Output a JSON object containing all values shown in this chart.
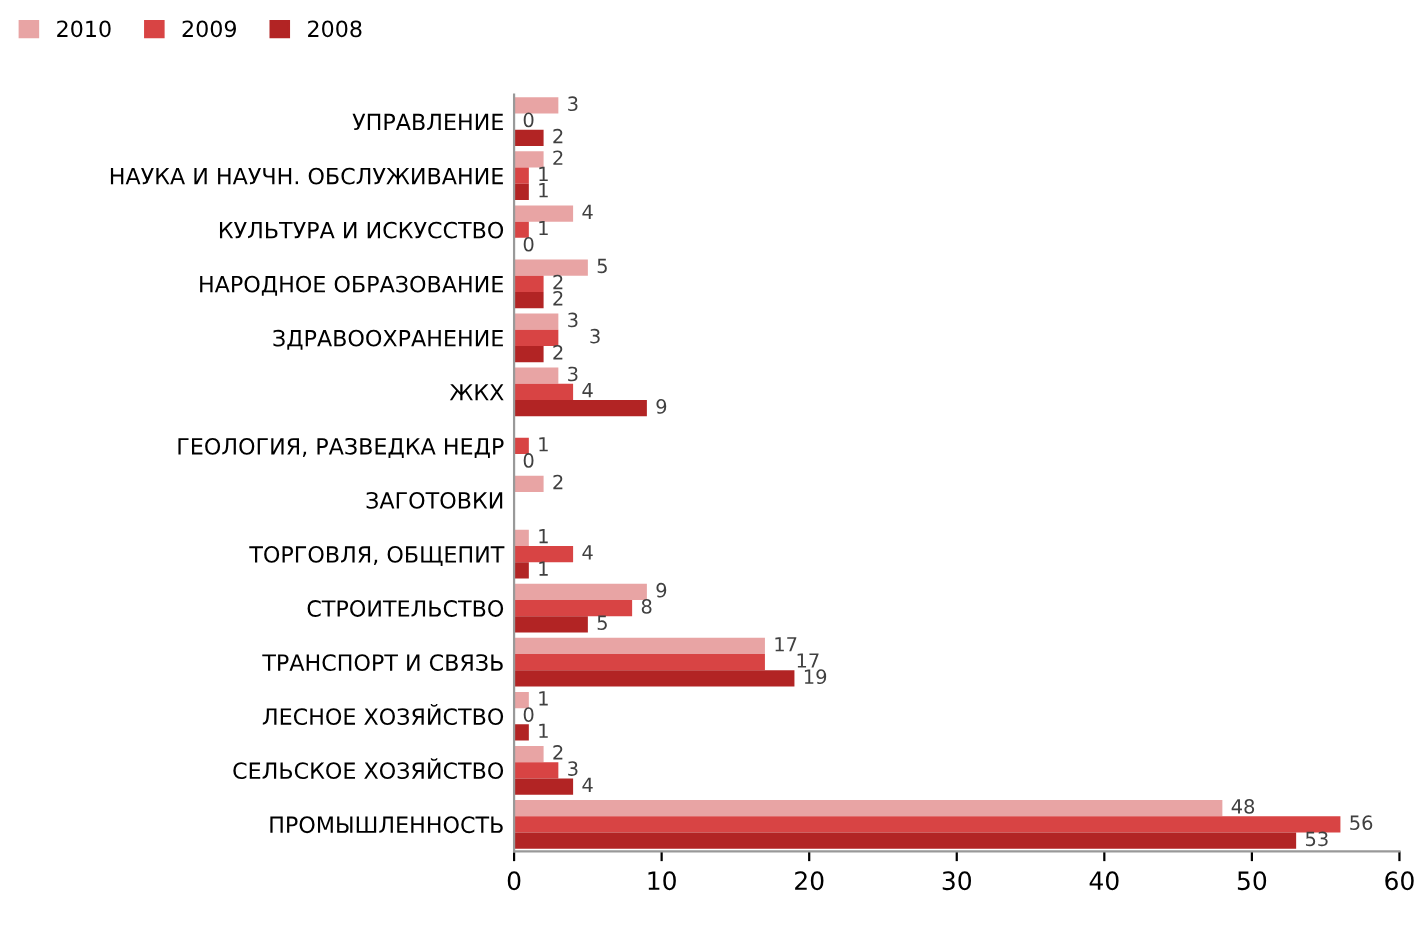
{
  "chart_data": {
    "type": "bar",
    "orientation": "horizontal",
    "categories": [
      "УПРАВЛЕНИЕ",
      "НАУКА И НАУЧН. ОБСЛУЖИВАНИЕ",
      "КУЛЬТУРА И ИСКУССТВО",
      "НАРОДНОЕ ОБРАЗОВАНИЕ",
      "ЗДРАВООХРАНЕНИЕ",
      "ЖКХ",
      "ГЕОЛОГИЯ, РАЗВЕДКА НЕДР",
      "ЗАГОТОВКИ",
      "ТОРГОВЛЯ, ОБЩЕПИТ",
      "СТРОИТЕЛЬСТВО",
      "ТРАНСПОРТ И СВЯЗЬ",
      "ЛЕСНОЕ ХОЗЯЙСТВО",
      "СЕЛЬСКОЕ ХОЗЯЙСТВО",
      "ПРОМЫШЛЕННОСТЬ"
    ],
    "series": [
      {
        "name": "2010",
        "color": "#e8a4a4",
        "values": [
          3,
          2,
          4,
          5,
          3,
          3,
          null,
          2,
          1,
          9,
          17,
          1,
          2,
          48
        ]
      },
      {
        "name": "2009",
        "color": "#d84444",
        "values": [
          0,
          1,
          1,
          2,
          3,
          4,
          1,
          null,
          4,
          8,
          17,
          0,
          3,
          56
        ]
      },
      {
        "name": "2008",
        "color": "#b22424",
        "values": [
          2,
          1,
          0,
          2,
          2,
          9,
          0,
          null,
          1,
          5,
          19,
          1,
          4,
          53
        ]
      }
    ],
    "xlim": [
      0,
      60
    ],
    "xticks": [
      0,
      10,
      20,
      30,
      40,
      50,
      60
    ],
    "data_labels": true,
    "legend": "top left",
    "grid": false
  }
}
